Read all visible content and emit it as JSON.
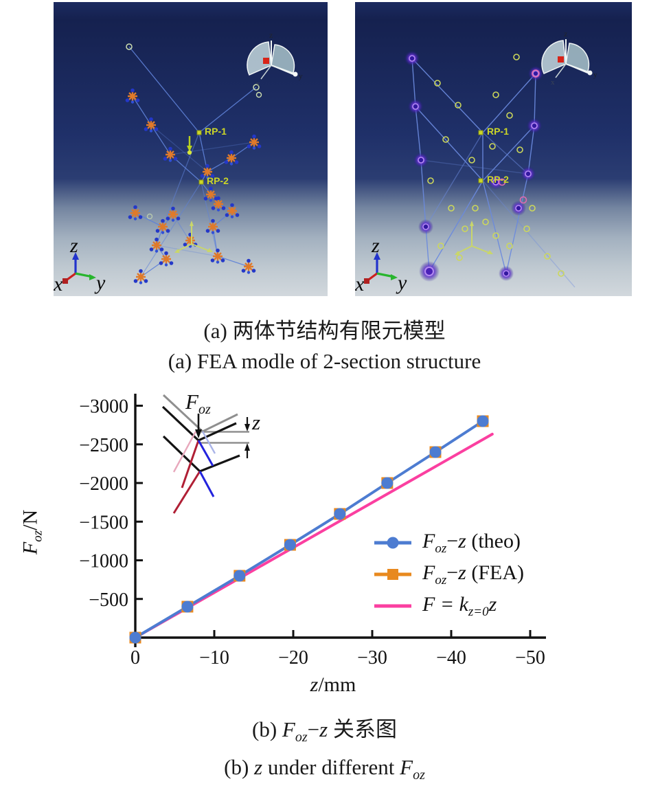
{
  "panel_a": {
    "caption_zh": "(a) 两体节结构有限元模型",
    "caption_en": "(a) FEA modle of 2-section structure",
    "left": {
      "rp1": "RP-1",
      "rp2": "RP-2",
      "axis": {
        "x": "x",
        "y": "y",
        "z": "z"
      },
      "triad": {
        "x": "x",
        "y": "y",
        "z": "z"
      }
    },
    "right": {
      "rp1": "RP-1",
      "rp2": "RP-2",
      "axis": {
        "x": "x",
        "y": "y",
        "z": "z"
      },
      "triad": {
        "x": "x",
        "y": "y",
        "z": "z"
      }
    }
  },
  "panel_b": {
    "caption_zh": {
      "p1": "(b) ",
      "f": "F",
      "fsub": "oz",
      "mid": "−",
      "v": "z",
      "p2": " 关系图"
    },
    "caption_en": {
      "p1": "(b) ",
      "v": "z",
      "p2": " under different ",
      "f": "F",
      "fsub": "oz"
    }
  },
  "chart": {
    "ylabel": {
      "f": "F",
      "fsub": "oz",
      "unit": "/N"
    },
    "xlabel": {
      "v": "z",
      "unit": "/mm"
    },
    "inset": {
      "force_f": "F",
      "force_sub": "oz",
      "gap": "z"
    },
    "legend": {
      "items": [
        {
          "f": "F",
          "fsub": "oz",
          "mid": "−",
          "v": "z",
          "rest": " (theo)"
        },
        {
          "f": "F",
          "fsub": "oz",
          "mid": "−",
          "v": "z",
          "rest": " (FEA)"
        },
        {
          "f": "F = k",
          "fsub": "z=0",
          "mid": "",
          "v": "z",
          "rest": ""
        }
      ]
    }
  },
  "chart_data": {
    "type": "line",
    "title": "",
    "xlabel": "z/mm",
    "ylabel": "Foz/N",
    "xlim": [
      0,
      -50
    ],
    "ylim": [
      0,
      -3000
    ],
    "grid": false,
    "legend_position": "inside lower-right",
    "x_ticks": [
      0,
      -10,
      -20,
      -30,
      -40,
      -50
    ],
    "x_tick_labels": [
      "0",
      "−10",
      "−20",
      "−30",
      "−40",
      "−50"
    ],
    "y_ticks": [
      -500,
      -1000,
      -1500,
      -2000,
      -2500,
      -3000
    ],
    "y_tick_labels": [
      "−500",
      "−1000",
      "−1500",
      "−2000",
      "−2500",
      "−3000"
    ],
    "legend": [
      "Foz−z (theo)",
      "Foz−z (FEA)",
      "F = k(z=0)z"
    ],
    "series": [
      {
        "name": "Foz−z (theo)",
        "color": "#4d7cd1",
        "marker": "circle",
        "x": [
          0,
          -6.6,
          -13.2,
          -19.6,
          -25.9,
          -31.9,
          -38.0,
          -44.0
        ],
        "y": [
          0,
          -400,
          -800,
          -1200,
          -1600,
          -2000,
          -2400,
          -2800
        ]
      },
      {
        "name": "Foz−z (FEA)",
        "color": "#e8891f",
        "marker": "square",
        "x": [
          0,
          -6.6,
          -13.2,
          -19.6,
          -25.9,
          -31.9,
          -38.0,
          -44.0
        ],
        "y": [
          0,
          -400,
          -800,
          -1200,
          -1600,
          -2000,
          -2400,
          -2800
        ]
      },
      {
        "name": "F = k(z=0)z",
        "color": "#fb3fa0",
        "marker": "none",
        "x": [
          0,
          -45.2
        ],
        "y": [
          0,
          -2632
        ]
      }
    ]
  }
}
